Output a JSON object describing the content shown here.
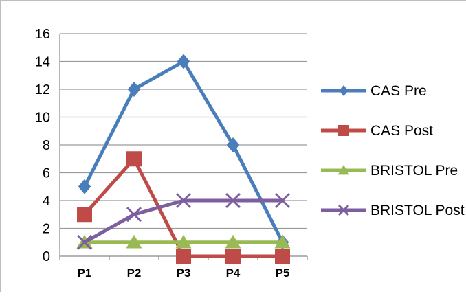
{
  "chart_data": {
    "type": "line",
    "categories": [
      "P1",
      "P2",
      "P3",
      "P4",
      "P5"
    ],
    "ylim": [
      0,
      16
    ],
    "yticks": [
      0,
      2,
      4,
      6,
      8,
      10,
      12,
      14,
      16
    ],
    "grid": true,
    "legend_position": "right",
    "series": [
      {
        "name": "CAS Pre",
        "values": [
          5,
          12,
          14,
          8,
          1
        ],
        "color": "#4a7ebb",
        "marker": "diamond"
      },
      {
        "name": "CAS Post",
        "values": [
          3,
          7,
          0,
          0,
          0
        ],
        "color": "#be4b48",
        "marker": "square"
      },
      {
        "name": "BRISTOL Pre",
        "values": [
          1,
          1,
          1,
          1,
          1
        ],
        "color": "#98b954",
        "marker": "triangle"
      },
      {
        "name": "BRISTOL Post",
        "values": [
          1,
          3,
          4,
          4,
          4
        ],
        "color": "#7d5fa0",
        "marker": "x"
      }
    ]
  }
}
